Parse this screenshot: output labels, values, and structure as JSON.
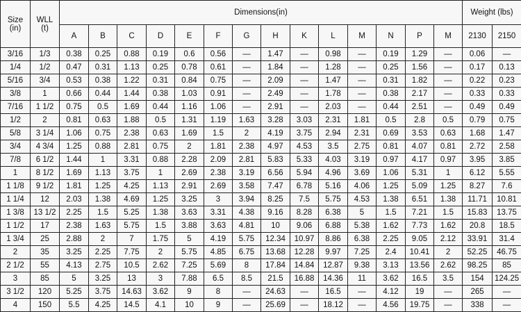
{
  "headers": {
    "size": "Size (in)",
    "wll": "WLL (t)",
    "dimensions": "Dimensions(in)",
    "weight": "Weight (lbs)",
    "dimension_columns": [
      "A",
      "B",
      "C",
      "D",
      "E",
      "F",
      "G",
      "H",
      "K",
      "L",
      "M",
      "N",
      "P",
      "M"
    ],
    "weight_columns": [
      "2130",
      "2150"
    ]
  },
  "rows": [
    [
      "3/16",
      "1/3",
      "0.38",
      "0.25",
      "0.88",
      "0.19",
      "0.6",
      "0.56",
      "—",
      "1.47",
      "—",
      "0.98",
      "—",
      "0.19",
      "1.29",
      "—",
      "0.06",
      "—"
    ],
    [
      "1/4",
      "1/2",
      "0.47",
      "0.31",
      "1.13",
      "0.25",
      "0.78",
      "0.61",
      "—",
      "1.84",
      "—",
      "1.28",
      "—",
      "0.25",
      "1.56",
      "—",
      "0.17",
      "0.13"
    ],
    [
      "5/16",
      "3/4",
      "0.53",
      "0.38",
      "1.22",
      "0.31",
      "0.84",
      "0.75",
      "—",
      "2.09",
      "—",
      "1.47",
      "—",
      "0.31",
      "1.82",
      "—",
      "0.22",
      "0.23"
    ],
    [
      "3/8",
      "1",
      "0.66",
      "0.44",
      "1.44",
      "0.38",
      "1.03",
      "0.91",
      "—",
      "2.49",
      "—",
      "1.78",
      "—",
      "0.38",
      "2.17",
      "—",
      "0.33",
      "0.33"
    ],
    [
      "7/16",
      "1 1/2",
      "0.75",
      "0.5",
      "1.69",
      "0.44",
      "1.16",
      "1.06",
      "—",
      "2.91",
      "—",
      "2.03",
      "—",
      "0.44",
      "2.51",
      "—",
      "0.49",
      "0.49"
    ],
    [
      "1/2",
      "2",
      "0.81",
      "0.63",
      "1.88",
      "0.5",
      "1.31",
      "1.19",
      "1.63",
      "3.28",
      "3.03",
      "2.31",
      "1.81",
      "0.5",
      "2.8",
      "0.5",
      "0.79",
      "0.75"
    ],
    [
      "5/8",
      "3 1/4",
      "1.06",
      "0.75",
      "2.38",
      "0.63",
      "1.69",
      "1.5",
      "2",
      "4.19",
      "3.75",
      "2.94",
      "2.31",
      "0.69",
      "3.53",
      "0.63",
      "1.68",
      "1.47"
    ],
    [
      "3/4",
      "4 3/4",
      "1.25",
      "0.88",
      "2.81",
      "0.75",
      "2",
      "1.81",
      "2.38",
      "4.97",
      "4.53",
      "3.5",
      "2.75",
      "0.81",
      "4.07",
      "0.81",
      "2.72",
      "2.58"
    ],
    [
      "7/8",
      "6 1/2",
      "1.44",
      "1",
      "3.31",
      "0.88",
      "2.28",
      "2.09",
      "2.81",
      "5.83",
      "5.33",
      "4.03",
      "3.19",
      "0.97",
      "4.17",
      "0.97",
      "3.95",
      "3.85"
    ],
    [
      "1",
      "8 1/2",
      "1.69",
      "1.13",
      "3.75",
      "1",
      "2.69",
      "2.38",
      "3.19",
      "6.56",
      "5.94",
      "4.96",
      "3.69",
      "1.06",
      "5.31",
      "1",
      "6.12",
      "5.55"
    ],
    [
      "1 1/8",
      "9 1/2",
      "1.81",
      "1.25",
      "4.25",
      "1.13",
      "2.91",
      "2.69",
      "3.58",
      "7.47",
      "6.78",
      "5.16",
      "4.06",
      "1.25",
      "5.09",
      "1.25",
      "8.27",
      "7.6"
    ],
    [
      "1 1/4",
      "12",
      "2.03",
      "1.38",
      "4.69",
      "1.25",
      "3.25",
      "3",
      "3.94",
      "8.25",
      "7.5",
      "5.75",
      "4.53",
      "1.38",
      "6.51",
      "1.38",
      "11.71",
      "10.81"
    ],
    [
      "1 3/8",
      "13 1/2",
      "2.25",
      "1.5",
      "5.25",
      "1.38",
      "3.63",
      "3.31",
      "4.38",
      "9.16",
      "8.28",
      "6.38",
      "5",
      "1.5",
      "7.21",
      "1.5",
      "15.83",
      "13.75"
    ],
    [
      "1 1/2",
      "17",
      "2.38",
      "1.63",
      "5.75",
      "1.5",
      "3.88",
      "3.63",
      "4.81",
      "10",
      "9.06",
      "6.88",
      "5.38",
      "1.62",
      "7.73",
      "1.62",
      "20.8",
      "18.5"
    ],
    [
      "1 3/4",
      "25",
      "2.88",
      "2",
      "7",
      "1.75",
      "5",
      "4.19",
      "5.75",
      "12.34",
      "10.97",
      "8.86",
      "6.38",
      "2.25",
      "9.05",
      "2.12",
      "33.91",
      "31.4"
    ],
    [
      "2",
      "35",
      "3.25",
      "2.25",
      "7.75",
      "2",
      "5.75",
      "4.85",
      "6.75",
      "13.68",
      "12.28",
      "9.97",
      "7.25",
      "2.4",
      "10.41",
      "2",
      "52.25",
      "46.75"
    ],
    [
      "2 1/2",
      "55",
      "4.13",
      "2.75",
      "10.5",
      "2.62",
      "7.25",
      "5.69",
      "8",
      "17.84",
      "14.84",
      "12.87",
      "9.38",
      "3.13",
      "13.56",
      "2.62",
      "98.25",
      "85"
    ],
    [
      "3",
      "85",
      "5",
      "3.25",
      "13",
      "3",
      "7.88",
      "6.5",
      "8.5",
      "21.5",
      "16.88",
      "14.36",
      "11",
      "3.62",
      "16.5",
      "3.5",
      "154",
      "124.25"
    ],
    [
      "3 1/2",
      "120",
      "5.25",
      "3.75",
      "14.63",
      "3.62",
      "9",
      "8",
      "—",
      "24.63",
      "—",
      "16.5",
      "—",
      "4.12",
      "19",
      "—",
      "265",
      "—"
    ],
    [
      "4",
      "150",
      "5.5",
      "4.25",
      "14.5",
      "4.1",
      "10",
      "9",
      "—",
      "25.69",
      "—",
      "18.12",
      "—",
      "4.56",
      "19.75",
      "—",
      "338",
      "—"
    ]
  ]
}
